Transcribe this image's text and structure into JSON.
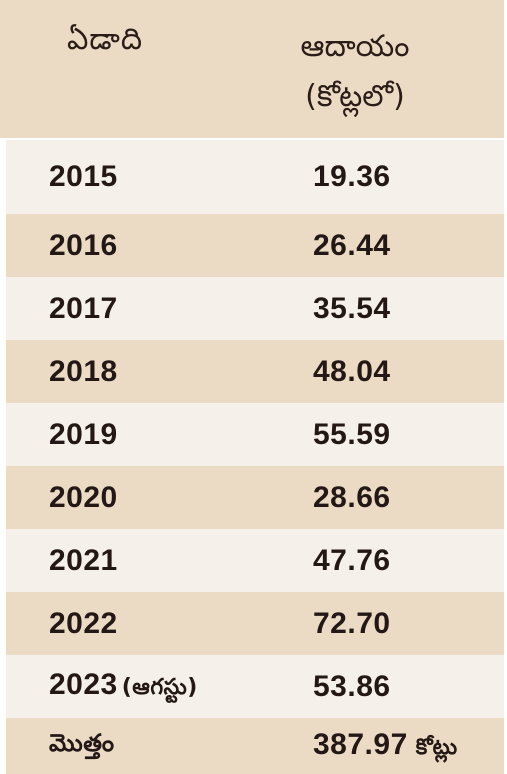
{
  "header": {
    "year": "ఏడాది",
    "revenue_line1": "ఆదాయం",
    "revenue_line2": "(కోట్లలో)"
  },
  "rows": [
    {
      "year": "2015",
      "note": "",
      "value": "19.36"
    },
    {
      "year": "2016",
      "note": "",
      "value": "26.44"
    },
    {
      "year": "2017",
      "note": "",
      "value": "35.54"
    },
    {
      "year": "2018",
      "note": "",
      "value": "48.04"
    },
    {
      "year": "2019",
      "note": "",
      "value": "55.59"
    },
    {
      "year": "2020",
      "note": "",
      "value": "28.66"
    },
    {
      "year": "2021",
      "note": "",
      "value": "47.76"
    },
    {
      "year": "2022",
      "note": "",
      "value": "72.70"
    },
    {
      "year": "2023",
      "note": "(ఆగస్టు)",
      "value": "53.86"
    }
  ],
  "total": {
    "label": "మొత్తం",
    "value": "387.97",
    "unit": "కోట్లు"
  },
  "colors": {
    "band_dark": "#ecdbc4",
    "band_light": "#f5f0e9",
    "text": "#231815"
  }
}
